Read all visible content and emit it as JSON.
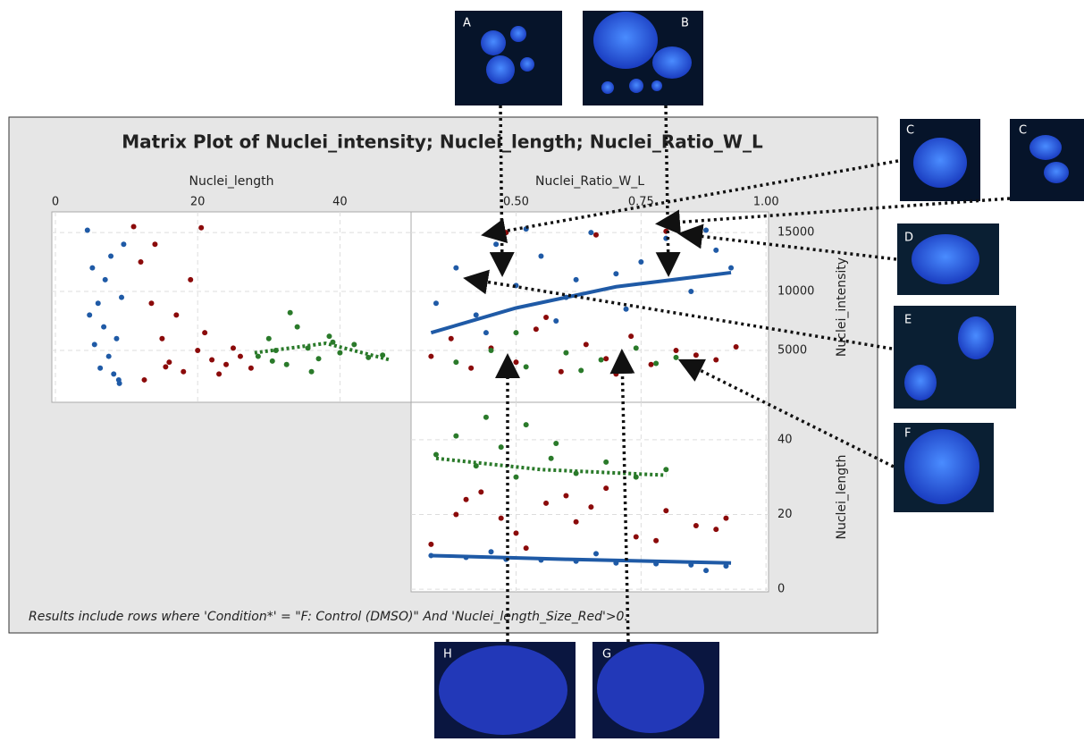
{
  "title": "Matrix Plot of Nuclei_intensity; Nuclei_length; Nuclei_Ratio_W_L",
  "note": "Results include rows where  'Condition*' = \"F: Control (DMSO)\"  And  'Nuclei_length_Size_Red'>0.",
  "images": [
    {
      "label": "A"
    },
    {
      "label": "B"
    },
    {
      "label": "C"
    },
    {
      "label": "C"
    },
    {
      "label": "D"
    },
    {
      "label": "E"
    },
    {
      "label": "F"
    },
    {
      "label": "H"
    },
    {
      "label": "G"
    }
  ],
  "chart_data": [
    {
      "type": "scatter",
      "xlabel": "Nuclei_length",
      "xlim": [
        -0.5,
        50
      ],
      "xticks": [
        0,
        20,
        40
      ],
      "ylim": [
        600,
        16750
      ],
      "sharey": 1,
      "grid": true,
      "series": [
        {
          "color": "#1f5aa6",
          "x": [
            4.5,
            5.2,
            6,
            6.8,
            7.5,
            8.2,
            9,
            9.6,
            5.5,
            7,
            8.6,
            6.3,
            9.3,
            4.8,
            7.8,
            8.9
          ],
          "values": [
            15200,
            12000,
            9000,
            7000,
            4500,
            3000,
            2200,
            14000,
            5500,
            11000,
            6000,
            3500,
            9500,
            8000,
            13000,
            2500
          ]
        },
        {
          "color": "#8b0a0a",
          "x": [
            11,
            12,
            13.5,
            15,
            16,
            18,
            20,
            22,
            24,
            26,
            27.5,
            14,
            17,
            19,
            21,
            23,
            25,
            12.5,
            15.5,
            20.5
          ],
          "values": [
            15500,
            12500,
            9000,
            6000,
            4000,
            3200,
            5000,
            4200,
            3800,
            4500,
            3500,
            14000,
            8000,
            11000,
            6500,
            3000,
            5200,
            2500,
            3600,
            15400
          ]
        },
        {
          "color": "#2a7a2a",
          "x": [
            28.5,
            30,
            31,
            32.5,
            34,
            35.5,
            37,
            38.5,
            40,
            42,
            44,
            46,
            33,
            36,
            30.5,
            39
          ],
          "values": [
            4500,
            6000,
            5000,
            3800,
            7000,
            5200,
            4300,
            6200,
            4800,
            5500,
            4400,
            4600,
            8200,
            3200,
            4100,
            5700
          ]
        }
      ],
      "fits": [
        {
          "color": "#2a7a2a",
          "style": "dotted",
          "x": [
            28,
            38,
            47
          ],
          "values": [
            4800,
            5600,
            4200
          ]
        }
      ]
    },
    {
      "type": "scatter",
      "xlabel": "Nuclei_Ratio_W_L",
      "ylabel": "Nuclei_intensity",
      "xlim": [
        0.29,
        1.005
      ],
      "xticks": [
        {
          "value": 0.5,
          "label": "0.50"
        },
        0.75,
        {
          "value": 1,
          "label": "1.00"
        }
      ],
      "ylim": [
        600,
        16750
      ],
      "yticks": [
        5000,
        10000,
        15000
      ],
      "grid": true,
      "series": [
        {
          "color": "#1f5aa6",
          "x": [
            0.34,
            0.38,
            0.42,
            0.46,
            0.5,
            0.55,
            0.6,
            0.65,
            0.7,
            0.75,
            0.8,
            0.85,
            0.9,
            0.93,
            0.44,
            0.58,
            0.72,
            0.88,
            0.62,
            0.52
          ],
          "values": [
            9000,
            12000,
            8000,
            14000,
            10500,
            13000,
            9500,
            15000,
            11500,
            12500,
            14500,
            10000,
            13500,
            12000,
            6500,
            7500,
            8500,
            15200,
            11000,
            15300
          ]
        },
        {
          "color": "#8b0a0a",
          "x": [
            0.33,
            0.37,
            0.41,
            0.45,
            0.5,
            0.54,
            0.59,
            0.64,
            0.68,
            0.73,
            0.77,
            0.82,
            0.86,
            0.9,
            0.94,
            0.48,
            0.66,
            0.8,
            0.56,
            0.7
          ],
          "values": [
            4500,
            6000,
            3500,
            5200,
            4000,
            6800,
            3200,
            5500,
            4300,
            6200,
            3800,
            5000,
            4600,
            4200,
            5300,
            15000,
            14800,
            15100,
            7800,
            3000
          ]
        },
        {
          "color": "#2a7a2a",
          "x": [
            0.38,
            0.45,
            0.52,
            0.6,
            0.67,
            0.74,
            0.82,
            0.5,
            0.63,
            0.78
          ],
          "values": [
            4000,
            5000,
            3600,
            4800,
            4200,
            5200,
            4400,
            6500,
            3300,
            3900
          ]
        }
      ],
      "fits": [
        {
          "color": "#1f5aa6",
          "style": "solid",
          "x": [
            0.33,
            0.5,
            0.7,
            0.93
          ],
          "values": [
            6500,
            8600,
            10400,
            11600
          ]
        }
      ]
    },
    {
      "type": "scatter",
      "ylabel": "Nuclei_length",
      "sharex": 1,
      "ylim": [
        -0.7,
        50
      ],
      "yticks": [
        0,
        20,
        40
      ],
      "grid": true,
      "series": [
        {
          "color": "#1f5aa6",
          "x": [
            0.33,
            0.4,
            0.48,
            0.55,
            0.62,
            0.7,
            0.78,
            0.85,
            0.92,
            0.45,
            0.66,
            0.88
          ],
          "values": [
            9,
            8.5,
            8,
            7.8,
            7.5,
            7,
            6.8,
            6.5,
            6.2,
            10,
            9.5,
            5
          ]
        },
        {
          "color": "#8b0a0a",
          "x": [
            0.33,
            0.38,
            0.43,
            0.5,
            0.56,
            0.62,
            0.68,
            0.74,
            0.8,
            0.86,
            0.92,
            0.4,
            0.52,
            0.65,
            0.78,
            0.9,
            0.47,
            0.6
          ],
          "values": [
            12,
            20,
            26,
            15,
            23,
            18,
            27,
            14,
            21,
            17,
            19,
            24,
            11,
            22,
            13,
            16,
            19,
            25
          ]
        },
        {
          "color": "#2a7a2a",
          "x": [
            0.34,
            0.38,
            0.42,
            0.47,
            0.52,
            0.57,
            0.62,
            0.68,
            0.74,
            0.8,
            0.44,
            0.58,
            0.5
          ],
          "values": [
            36,
            41,
            33,
            38,
            44,
            35,
            31,
            34,
            30,
            32,
            46,
            39,
            30
          ]
        }
      ],
      "fits": [
        {
          "color": "#2a7a2a",
          "style": "dotted",
          "x": [
            0.34,
            0.55,
            0.8
          ],
          "values": [
            35,
            32,
            30.5
          ]
        },
        {
          "color": "#1f5aa6",
          "style": "solid",
          "x": [
            0.33,
            0.6,
            0.93
          ],
          "values": [
            9,
            8,
            7
          ]
        }
      ]
    }
  ]
}
